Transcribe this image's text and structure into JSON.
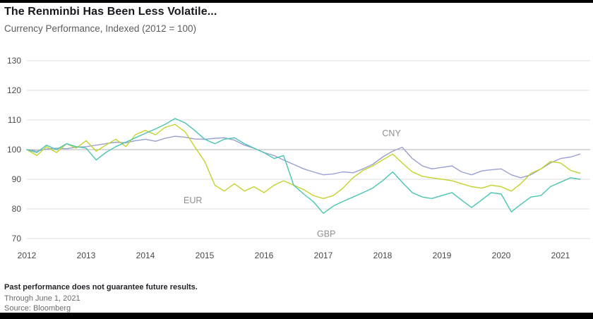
{
  "header": {
    "title": "The Renminbi Has Been Less Volatile...",
    "subtitle": "Currency Performance, Indexed (2012 = 100)"
  },
  "footer": {
    "disclaimer": "Past performance does not guarantee future results.",
    "through": "Through June 1, 2021",
    "source": "Source: Bloomberg"
  },
  "chart_data": {
    "type": "line",
    "title": "The Renminbi Has Been Less Volatile...",
    "subtitle": "Currency Performance, Indexed (2012 = 100)",
    "xlabel": "",
    "ylabel": "",
    "xlim": [
      2012,
      2021.5
    ],
    "ylim": [
      70,
      130
    ],
    "yticks": [
      70,
      80,
      90,
      100,
      110,
      120,
      130
    ],
    "xticks": [
      2012,
      2013,
      2014,
      2015,
      2016,
      2017,
      2018,
      2019,
      2020,
      2021
    ],
    "grid": "horizontal",
    "legend_position": "inline-annotations",
    "x": [
      2012.0,
      2012.17,
      2012.33,
      2012.5,
      2012.67,
      2012.83,
      2013.0,
      2013.17,
      2013.33,
      2013.5,
      2013.67,
      2013.83,
      2014.0,
      2014.17,
      2014.33,
      2014.5,
      2014.67,
      2014.83,
      2015.0,
      2015.17,
      2015.33,
      2015.5,
      2015.67,
      2015.83,
      2016.0,
      2016.17,
      2016.33,
      2016.5,
      2016.67,
      2016.83,
      2017.0,
      2017.17,
      2017.33,
      2017.5,
      2017.67,
      2017.83,
      2018.0,
      2018.17,
      2018.33,
      2018.5,
      2018.67,
      2018.83,
      2019.0,
      2019.17,
      2019.33,
      2019.5,
      2019.67,
      2019.83,
      2020.0,
      2020.17,
      2020.33,
      2020.5,
      2020.67,
      2020.83,
      2021.0,
      2021.17,
      2021.33
    ],
    "series": [
      {
        "name": "CNY",
        "color": "#9aa0d2",
        "values": [
          100,
          99.5,
          100.2,
          100.5,
          100.3,
          100.8,
          101,
          101.5,
          102,
          102.5,
          102.3,
          103,
          103.5,
          102.8,
          103.8,
          104.5,
          104.2,
          103.6,
          103.5,
          103.8,
          104,
          103.2,
          101.5,
          100.5,
          99,
          98,
          96.5,
          95,
          93.5,
          92.5,
          91.5,
          91.8,
          92.5,
          92.2,
          93.5,
          95,
          97.5,
          99.5,
          100.8,
          97,
          94.5,
          93.5,
          94,
          94.5,
          92.5,
          91.5,
          92.8,
          93.2,
          93.5,
          91.5,
          90.5,
          91.5,
          93.5,
          95.5,
          97,
          97.5,
          98.5
        ]
      },
      {
        "name": "EUR",
        "color": "#c6d22b",
        "values": [
          100,
          98,
          101,
          99,
          102,
          100.5,
          103,
          99.5,
          101.5,
          103.5,
          101,
          105,
          106.5,
          105,
          107.5,
          108.5,
          106,
          101,
          96,
          88,
          86,
          88.5,
          86,
          87.5,
          85.5,
          88,
          89.5,
          88,
          86.5,
          84.5,
          83.5,
          84.5,
          87,
          90.5,
          93,
          94.5,
          96.5,
          98.5,
          95.5,
          92.5,
          91,
          90.5,
          90,
          89.5,
          88.5,
          87.5,
          87,
          88,
          87.5,
          86,
          88.5,
          92,
          93.5,
          96,
          95.5,
          93,
          92
        ]
      },
      {
        "name": "GBP",
        "color": "#49c5b1",
        "values": [
          100,
          99,
          101.5,
          100,
          102,
          101,
          100.5,
          96.5,
          99,
          101,
          102.5,
          104,
          105.5,
          107,
          108.5,
          110.5,
          109,
          106.5,
          103.5,
          102,
          103.5,
          104,
          102,
          100.5,
          99,
          97,
          98,
          88,
          85,
          82.5,
          78.5,
          81,
          82.5,
          84,
          85.5,
          87,
          89.5,
          92.5,
          89,
          85.5,
          84,
          83.5,
          84.5,
          85.5,
          83,
          80.5,
          83,
          85.5,
          85,
          79,
          81.5,
          84,
          84.5,
          87.5,
          89,
          90.5,
          90
        ]
      }
    ],
    "annotations": [
      {
        "label": "CNY",
        "x": 2018.15,
        "y": 105.5
      },
      {
        "label": "EUR",
        "x": 2014.8,
        "y": 82.8
      },
      {
        "label": "GBP",
        "x": 2017.05,
        "y": 71.5
      }
    ]
  }
}
